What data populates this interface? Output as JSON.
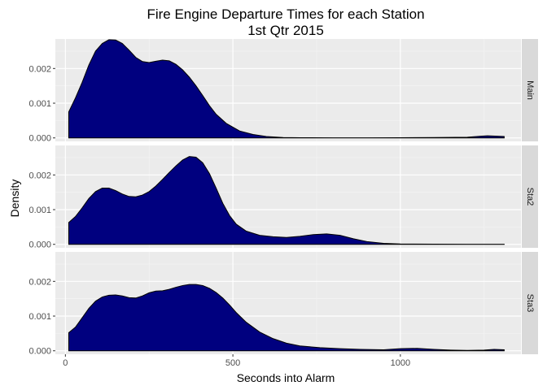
{
  "chart_data": {
    "type": "area",
    "title": "Fire Engine Departure Times for each Station",
    "subtitle": "1st Qtr 2015",
    "xlabel": "Seconds into Alarm",
    "ylabel": "Density",
    "xlim": [
      -30,
      1360
    ],
    "ylim": [
      -0.0001,
      0.00285
    ],
    "x_ticks": [
      0,
      500,
      1000
    ],
    "x_tick_labels": [
      "0",
      "500",
      "1000"
    ],
    "y_ticks": [
      0,
      0.001,
      0.002
    ],
    "y_tick_labels": [
      "0.000",
      "0.001",
      "0.002"
    ],
    "grid": true,
    "legend": "none",
    "fill_color": "#00007f",
    "panel_background": "#ebebeb",
    "strip_background": "#d9d9d9",
    "panels": [
      {
        "strip_label": "Main",
        "x": [
          10,
          30,
          50,
          70,
          90,
          110,
          130,
          150,
          170,
          190,
          210,
          230,
          250,
          270,
          290,
          310,
          330,
          350,
          370,
          390,
          410,
          430,
          450,
          480,
          520,
          560,
          600,
          650,
          700,
          800,
          900,
          1000,
          1100,
          1200,
          1240,
          1260,
          1290,
          1310
        ],
        "y": [
          0.00075,
          0.00115,
          0.0016,
          0.0021,
          0.0025,
          0.00272,
          0.00283,
          0.00282,
          0.00272,
          0.00253,
          0.00232,
          0.0022,
          0.00217,
          0.00221,
          0.00224,
          0.00222,
          0.00212,
          0.00196,
          0.00175,
          0.0015,
          0.00122,
          0.00093,
          0.00068,
          0.00042,
          0.0002,
          0.0001,
          4e-05,
          1e-05,
          5e-06,
          3e-06,
          2e-06,
          5e-06,
          1e-05,
          2e-05,
          5e-05,
          6e-05,
          5e-05,
          4e-05
        ]
      },
      {
        "strip_label": "Sta2",
        "x": [
          10,
          30,
          50,
          70,
          90,
          110,
          130,
          150,
          170,
          190,
          210,
          230,
          250,
          270,
          290,
          310,
          330,
          350,
          370,
          390,
          410,
          430,
          450,
          470,
          490,
          510,
          540,
          580,
          620,
          660,
          700,
          740,
          780,
          820,
          860,
          900,
          950,
          1000,
          1100,
          1200,
          1310
        ],
        "y": [
          0.00063,
          0.0008,
          0.00105,
          0.00132,
          0.00152,
          0.00162,
          0.00162,
          0.00155,
          0.00145,
          0.00138,
          0.00137,
          0.00142,
          0.00152,
          0.00168,
          0.00187,
          0.00207,
          0.00226,
          0.00243,
          0.00253,
          0.00251,
          0.00235,
          0.00204,
          0.00162,
          0.00118,
          0.00083,
          0.00058,
          0.00038,
          0.00026,
          0.00022,
          0.0002,
          0.00023,
          0.00028,
          0.0003,
          0.00026,
          0.00016,
          8e-05,
          3e-05,
          1e-05,
          5e-06,
          3e-06,
          2e-06
        ]
      },
      {
        "strip_label": "Sta3",
        "x": [
          10,
          30,
          50,
          70,
          90,
          110,
          130,
          150,
          170,
          190,
          210,
          230,
          250,
          270,
          290,
          310,
          330,
          350,
          370,
          390,
          410,
          430,
          450,
          470,
          490,
          510,
          540,
          580,
          620,
          660,
          700,
          760,
          820,
          880,
          950,
          1000,
          1050,
          1100,
          1150,
          1200,
          1250,
          1280,
          1310
        ],
        "y": [
          0.00052,
          0.00068,
          0.00095,
          0.00122,
          0.00143,
          0.00155,
          0.0016,
          0.00161,
          0.00158,
          0.00153,
          0.00152,
          0.00158,
          0.00167,
          0.00172,
          0.00173,
          0.00177,
          0.00183,
          0.00188,
          0.00191,
          0.00191,
          0.00188,
          0.0018,
          0.00168,
          0.00152,
          0.00132,
          0.0011,
          0.00082,
          0.00054,
          0.00035,
          0.00022,
          0.00014,
          9e-05,
          6e-05,
          4e-05,
          3e-05,
          6e-05,
          7e-05,
          4e-05,
          2e-05,
          1e-05,
          2e-05,
          4e-05,
          3e-05
        ]
      }
    ]
  }
}
